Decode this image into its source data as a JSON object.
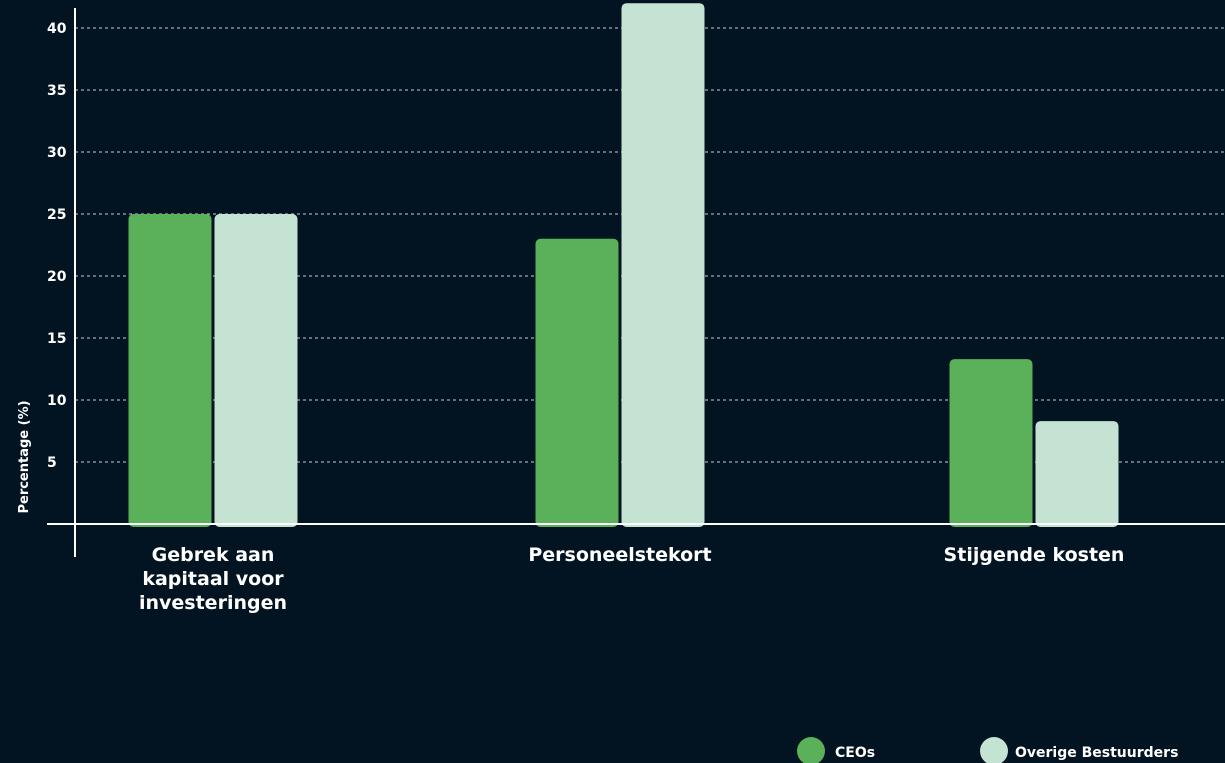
{
  "chart_data": {
    "type": "bar",
    "title": "",
    "xlabel": "",
    "ylabel": "Percentage (%)",
    "ylim": [
      0,
      42
    ],
    "yticks": [
      5,
      10,
      15,
      20,
      25,
      30,
      35,
      40
    ],
    "grid": true,
    "legend_position": "bottom-right",
    "categories": [
      [
        "Gebrek aan",
        "kapitaal voor",
        "investeringen"
      ],
      [
        "Personeelstekort"
      ],
      [
        "Stijgende kosten"
      ]
    ],
    "series": [
      {
        "name": "CEOs",
        "color": "#5bb05a",
        "values": [
          25,
          23,
          13.3
        ]
      },
      {
        "name": "Overige Bestuurders",
        "color": "#c4e3d3",
        "values": [
          25,
          42,
          8.3
        ]
      }
    ]
  }
}
